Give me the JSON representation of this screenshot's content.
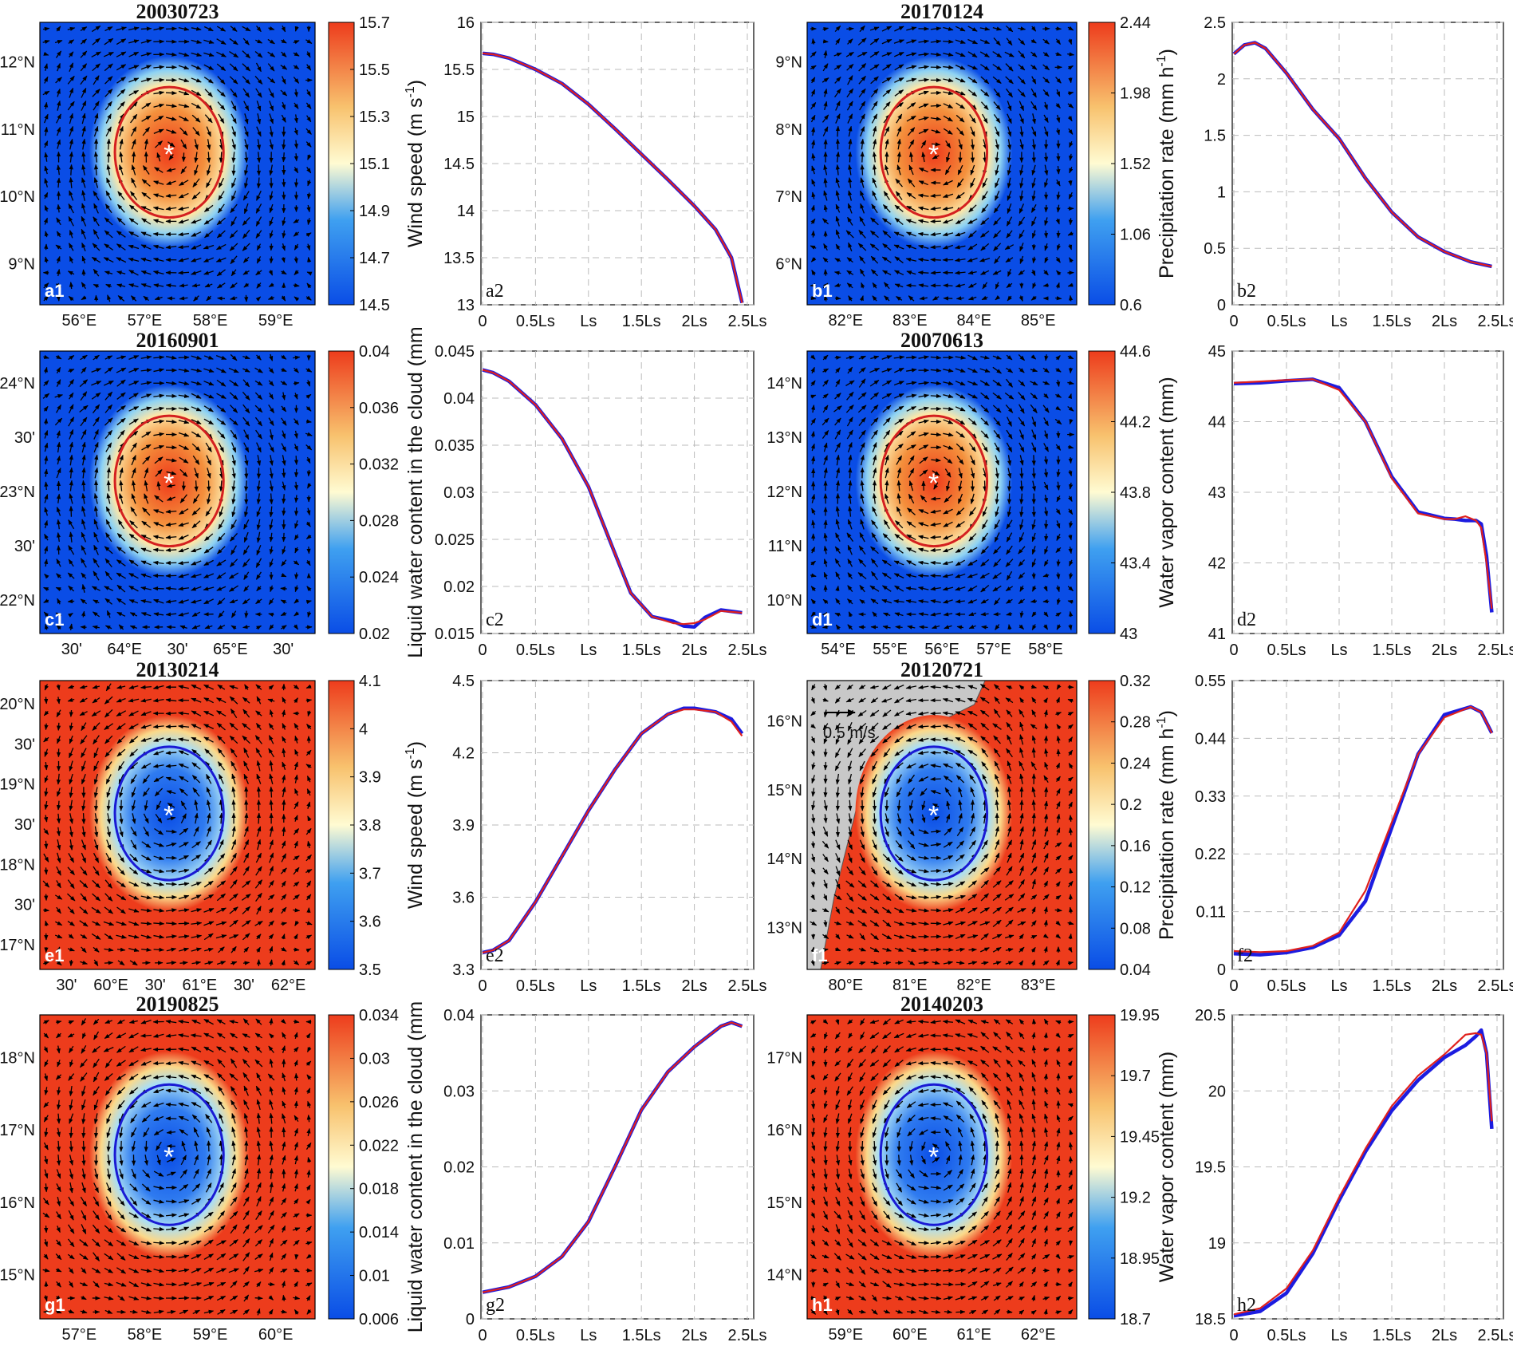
{
  "panels": [
    {
      "id": "a",
      "title": "20030723",
      "map_label": "a1",
      "plot_label": "a2",
      "center_marker": "*",
      "contour_color": "#d42020",
      "eddy": "warm",
      "lat_ticks": [
        "9°N",
        "10°N",
        "11°N",
        "12°N"
      ],
      "lon_ticks": [
        "56°E",
        "57°E",
        "58°E",
        "59°E"
      ],
      "colorbar": {
        "min": 14.5,
        "max": 15.7,
        "ticks": [
          "14.5",
          "14.7",
          "14.9",
          "15.1",
          "15.3",
          "15.5",
          "15.7"
        ]
      },
      "ylabel": "Wind speed (m s",
      "ylabel_sup": "-1",
      "ylabel_close": ")",
      "ylim": [
        13,
        16
      ],
      "yticks": [
        "13",
        "13.5",
        "14",
        "14.5",
        "15",
        "15.5",
        "16"
      ]
    },
    {
      "id": "b",
      "title": "20170124",
      "map_label": "b1",
      "plot_label": "b2",
      "center_marker": "*",
      "contour_color": "#d42020",
      "eddy": "warm",
      "lat_ticks": [
        "6°N",
        "7°N",
        "8°N",
        "9°N"
      ],
      "lon_ticks": [
        "82°E",
        "83°E",
        "84°E",
        "85°E"
      ],
      "colorbar": {
        "min": 0.6,
        "max": 2.44,
        "ticks": [
          "0.6",
          "1.06",
          "1.52",
          "1.98",
          "2.44"
        ]
      },
      "ylabel": "Precipitation rate (mm h",
      "ylabel_sup": "-1",
      "ylabel_close": ")",
      "ylim": [
        0,
        2.5
      ],
      "yticks": [
        "0",
        "0.5",
        "1",
        "1.5",
        "2",
        "2.5"
      ]
    },
    {
      "id": "c",
      "title": "20160901",
      "map_label": "c1",
      "plot_label": "c2",
      "center_marker": "*",
      "contour_color": "#d42020",
      "eddy": "warm",
      "lat_ticks": [
        "22°N",
        "30'",
        "23°N",
        "30'",
        "24°N"
      ],
      "lon_ticks": [
        "30'",
        "64°E",
        "30'",
        "65°E",
        "30'"
      ],
      "colorbar": {
        "min": 0.02,
        "max": 0.04,
        "ticks": [
          "0.02",
          "0.024",
          "0.028",
          "0.032",
          "0.036",
          "0.04"
        ]
      },
      "ylabel": "Liquid water content in the cloud (mm",
      "ylabel_sup": "",
      "ylabel_close": "",
      "ylim": [
        0.015,
        0.045
      ],
      "yticks": [
        "0.015",
        "0.02",
        "0.025",
        "0.03",
        "0.035",
        "0.04",
        "0.045"
      ]
    },
    {
      "id": "d",
      "title": "20070613",
      "map_label": "d1",
      "plot_label": "d2",
      "center_marker": "*",
      "contour_color": "#d42020",
      "eddy": "warm",
      "lat_ticks": [
        "10°N",
        "11°N",
        "12°N",
        "13°N",
        "14°N"
      ],
      "lon_ticks": [
        "54°E",
        "55°E",
        "56°E",
        "57°E",
        "58°E"
      ],
      "colorbar": {
        "min": 43,
        "max": 44.6,
        "ticks": [
          "43",
          "43.4",
          "43.8",
          "44.2",
          "44.6"
        ]
      },
      "ylabel": "Water vapor content (mm)",
      "ylabel_sup": "",
      "ylabel_close": "",
      "ylim": [
        41,
        45
      ],
      "yticks": [
        "41",
        "42",
        "43",
        "44",
        "45"
      ]
    },
    {
      "id": "e",
      "title": "20130214",
      "map_label": "e1",
      "plot_label": "e2",
      "center_marker": "*",
      "contour_color": "#1a1ad4",
      "eddy": "cold",
      "lat_ticks": [
        "17°N",
        "30'",
        "18°N",
        "30'",
        "19°N",
        "30'",
        "20°N"
      ],
      "lon_ticks": [
        "30'",
        "60°E",
        "30'",
        "61°E",
        "30'",
        "62°E"
      ],
      "colorbar": {
        "min": 3.5,
        "max": 4.1,
        "ticks": [
          "3.5",
          "3.6",
          "3.7",
          "3.8",
          "3.9",
          "4",
          "4.1"
        ]
      },
      "ylabel": "Wind speed (m s",
      "ylabel_sup": "-1",
      "ylabel_close": ")",
      "ylim": [
        3.3,
        4.5
      ],
      "yticks": [
        "3.3",
        "3.6",
        "3.9",
        "4.2",
        "4.5"
      ]
    },
    {
      "id": "f",
      "title": "20120721",
      "map_label": "f1",
      "plot_label": "f2",
      "center_marker": "*",
      "contour_color": "#1a1ad4",
      "eddy": "cold",
      "scale_arrow": "0.5 m/s",
      "lat_ticks": [
        "13°N",
        "14°N",
        "15°N",
        "16°N"
      ],
      "lon_ticks": [
        "80°E",
        "81°E",
        "82°E",
        "83°E"
      ],
      "colorbar": {
        "min": 0.04,
        "max": 0.32,
        "ticks": [
          "0.04",
          "0.08",
          "0.12",
          "0.16",
          "0.2",
          "0.24",
          "0.28",
          "0.32"
        ]
      },
      "ylabel": "Precipitation rate (mm h",
      "ylabel_sup": "-1",
      "ylabel_close": ")",
      "ylim": [
        0,
        0.55
      ],
      "yticks": [
        "0",
        "0.11",
        "0.22",
        "0.33",
        "0.44",
        "0.55"
      ]
    },
    {
      "id": "g",
      "title": "20190825",
      "map_label": "g1",
      "plot_label": "g2",
      "center_marker": "*",
      "contour_color": "#1a1ad4",
      "eddy": "cold",
      "lat_ticks": [
        "15°N",
        "16°N",
        "17°N",
        "18°N"
      ],
      "lon_ticks": [
        "57°E",
        "58°E",
        "59°E",
        "60°E"
      ],
      "colorbar": {
        "min": 0.006,
        "max": 0.034,
        "ticks": [
          "0.006",
          "0.01",
          "0.014",
          "0.018",
          "0.022",
          "0.026",
          "0.03",
          "0.034"
        ]
      },
      "ylabel": "Liquid water content in the cloud (mm",
      "ylabel_sup": "",
      "ylabel_close": "",
      "ylim": [
        0,
        0.04
      ],
      "yticks": [
        "0",
        "0.01",
        "0.02",
        "0.03",
        "0.04"
      ]
    },
    {
      "id": "h",
      "title": "20140203",
      "map_label": "h1",
      "plot_label": "h2",
      "center_marker": "*",
      "contour_color": "#1a1ad4",
      "eddy": "cold",
      "lat_ticks": [
        "14°N",
        "15°N",
        "16°N",
        "17°N"
      ],
      "lon_ticks": [
        "59°E",
        "60°E",
        "61°E",
        "62°E"
      ],
      "colorbar": {
        "min": 18.7,
        "max": 19.95,
        "ticks": [
          "18.7",
          "18.95",
          "19.2",
          "19.45",
          "19.7",
          "19.95"
        ]
      },
      "ylabel": "Water vapor content (mm)",
      "ylabel_sup": "",
      "ylabel_close": "",
      "ylim": [
        18.5,
        20.5
      ],
      "yticks": [
        "18.5",
        "19",
        "19.5",
        "20",
        "20.5"
      ]
    }
  ],
  "chart_data": [
    {
      "type": "line",
      "panel": "a2",
      "x": [
        0,
        0.1,
        0.25,
        0.5,
        0.75,
        1,
        1.25,
        1.5,
        1.75,
        2,
        2.2,
        2.35,
        2.45
      ],
      "series": [
        {
          "name": "red",
          "color": "#e0201c",
          "values": [
            15.67,
            15.66,
            15.62,
            15.5,
            15.35,
            15.13,
            14.87,
            14.6,
            14.33,
            14.05,
            13.8,
            13.5,
            13.02
          ]
        },
        {
          "name": "blue",
          "color": "#1c1ce0",
          "values": [
            15.67,
            15.66,
            15.62,
            15.5,
            15.35,
            15.13,
            14.87,
            14.6,
            14.33,
            14.05,
            13.8,
            13.5,
            13.02
          ]
        }
      ],
      "xlabel": "",
      "xticks": [
        "0",
        "0.5Ls",
        "Ls",
        "1.5Ls",
        "2Ls",
        "2.5Ls"
      ],
      "xlim": [
        0,
        2.5
      ],
      "ylim": [
        13,
        16
      ],
      "grid": true
    },
    {
      "type": "line",
      "panel": "b2",
      "x": [
        0,
        0.1,
        0.2,
        0.3,
        0.5,
        0.75,
        1,
        1.25,
        1.5,
        1.75,
        2,
        2.25,
        2.45
      ],
      "series": [
        {
          "name": "red",
          "color": "#e0201c",
          "values": [
            2.22,
            2.3,
            2.32,
            2.27,
            2.05,
            1.73,
            1.47,
            1.12,
            0.82,
            0.6,
            0.47,
            0.38,
            0.34
          ]
        },
        {
          "name": "blue",
          "color": "#1c1ce0",
          "values": [
            2.22,
            2.3,
            2.32,
            2.27,
            2.05,
            1.73,
            1.47,
            1.12,
            0.82,
            0.6,
            0.47,
            0.38,
            0.34
          ]
        }
      ],
      "xlabel": "",
      "xticks": [
        "0",
        "0.5Ls",
        "Ls",
        "1.5Ls",
        "2Ls",
        "2.5Ls"
      ],
      "xlim": [
        0,
        2.5
      ],
      "ylim": [
        0,
        2.5
      ],
      "grid": true
    },
    {
      "type": "line",
      "panel": "c2",
      "x": [
        0,
        0.1,
        0.25,
        0.5,
        0.75,
        1,
        1.25,
        1.4,
        1.6,
        1.8,
        1.9,
        2,
        2.1,
        2.25,
        2.45
      ],
      "series": [
        {
          "name": "red",
          "color": "#e0201c",
          "values": [
            0.043,
            0.0427,
            0.0418,
            0.0393,
            0.0357,
            0.0306,
            0.0235,
            0.0193,
            0.0168,
            0.0161,
            0.016,
            0.0161,
            0.0165,
            0.0174,
            0.0172
          ]
        },
        {
          "name": "blue",
          "color": "#1c1ce0",
          "values": [
            0.043,
            0.0427,
            0.0418,
            0.0393,
            0.0357,
            0.0306,
            0.0235,
            0.0193,
            0.0168,
            0.0163,
            0.0158,
            0.0157,
            0.0167,
            0.0175,
            0.0172
          ]
        }
      ],
      "xlabel": "",
      "xticks": [
        "0",
        "0.5Ls",
        "Ls",
        "1.5Ls",
        "2Ls",
        "2.5Ls"
      ],
      "xlim": [
        0,
        2.5
      ],
      "ylim": [
        0.015,
        0.045
      ],
      "grid": true
    },
    {
      "type": "line",
      "panel": "d2",
      "x": [
        0,
        0.25,
        0.5,
        0.75,
        1,
        1.25,
        1.5,
        1.75,
        2,
        2.1,
        2.2,
        2.3,
        2.35,
        2.4,
        2.45
      ],
      "series": [
        {
          "name": "red",
          "color": "#e0201c",
          "values": [
            44.55,
            44.57,
            44.59,
            44.6,
            44.45,
            44.0,
            43.2,
            42.7,
            42.62,
            42.62,
            42.66,
            42.6,
            42.5,
            42.0,
            41.35
          ]
        },
        {
          "name": "blue",
          "color": "#1c1ce0",
          "values": [
            44.54,
            44.55,
            44.58,
            44.6,
            44.48,
            44.0,
            43.22,
            42.72,
            42.63,
            42.62,
            42.6,
            42.6,
            42.55,
            42.1,
            41.3
          ]
        }
      ],
      "xlabel": "",
      "xticks": [
        "0",
        "0.5Ls",
        "Ls",
        "1.5Ls",
        "2Ls",
        "2.5Ls"
      ],
      "xlim": [
        0,
        2.5
      ],
      "ylim": [
        41,
        45
      ],
      "grid": true
    },
    {
      "type": "line",
      "panel": "e2",
      "x": [
        0,
        0.1,
        0.25,
        0.5,
        0.75,
        1,
        1.25,
        1.5,
        1.75,
        1.9,
        2,
        2.2,
        2.35,
        2.45
      ],
      "series": [
        {
          "name": "red",
          "color": "#e0201c",
          "values": [
            3.37,
            3.38,
            3.42,
            3.58,
            3.77,
            3.96,
            4.13,
            4.28,
            4.36,
            4.38,
            4.38,
            4.37,
            4.33,
            4.27
          ]
        },
        {
          "name": "blue",
          "color": "#1c1ce0",
          "values": [
            3.37,
            3.38,
            3.42,
            3.58,
            3.77,
            3.96,
            4.13,
            4.28,
            4.36,
            4.385,
            4.385,
            4.37,
            4.34,
            4.28
          ]
        }
      ],
      "xlabel": "",
      "xticks": [
        "0",
        "0.5Ls",
        "Ls",
        "1.5Ls",
        "2Ls",
        "2.5Ls"
      ],
      "xlim": [
        0,
        2.5
      ],
      "ylim": [
        3.3,
        4.5
      ],
      "grid": true
    },
    {
      "type": "line",
      "panel": "f2",
      "x": [
        0,
        0.25,
        0.5,
        0.75,
        1,
        1.25,
        1.5,
        1.75,
        2,
        2.25,
        2.35,
        2.45
      ],
      "series": [
        {
          "name": "red",
          "color": "#e0201c",
          "values": [
            0.035,
            0.033,
            0.035,
            0.045,
            0.07,
            0.15,
            0.28,
            0.41,
            0.48,
            0.5,
            0.49,
            0.45
          ]
        },
        {
          "name": "blue",
          "color": "#1c1ce0",
          "values": [
            0.03,
            0.028,
            0.032,
            0.042,
            0.065,
            0.13,
            0.27,
            0.41,
            0.485,
            0.5,
            0.49,
            0.45
          ]
        }
      ],
      "xlabel": "",
      "xticks": [
        "0",
        "0.5Ls",
        "Ls",
        "1.5Ls",
        "2Ls",
        "2.5Ls"
      ],
      "xlim": [
        0,
        2.5
      ],
      "ylim": [
        0,
        0.55
      ],
      "grid": true
    },
    {
      "type": "line",
      "panel": "g2",
      "x": [
        0,
        0.25,
        0.5,
        0.75,
        1,
        1.25,
        1.5,
        1.75,
        2,
        2.25,
        2.35,
        2.45
      ],
      "series": [
        {
          "name": "red",
          "color": "#e0201c",
          "values": [
            0.0035,
            0.0042,
            0.0056,
            0.0082,
            0.0128,
            0.02,
            0.0275,
            0.0325,
            0.0358,
            0.0385,
            0.039,
            0.0385
          ]
        },
        {
          "name": "blue",
          "color": "#1c1ce0",
          "values": [
            0.0035,
            0.0042,
            0.0056,
            0.0082,
            0.0128,
            0.02,
            0.0275,
            0.0325,
            0.0358,
            0.0385,
            0.039,
            0.0385
          ]
        }
      ],
      "xlabel": "",
      "xticks": [
        "0",
        "0.5Ls",
        "Ls",
        "1.5Ls",
        "2Ls",
        "2.5Ls"
      ],
      "xlim": [
        0,
        2.5
      ],
      "ylim": [
        0,
        0.04
      ],
      "grid": true
    },
    {
      "type": "line",
      "panel": "h2",
      "x": [
        0,
        0.25,
        0.5,
        0.75,
        1,
        1.25,
        1.5,
        1.75,
        2,
        2.2,
        2.3,
        2.35,
        2.4,
        2.45
      ],
      "series": [
        {
          "name": "red",
          "color": "#e0201c",
          "values": [
            18.53,
            18.57,
            18.7,
            18.95,
            19.3,
            19.62,
            19.9,
            20.1,
            20.24,
            20.37,
            20.38,
            20.37,
            20.25,
            19.8
          ]
        },
        {
          "name": "blue",
          "color": "#1c1ce0",
          "values": [
            18.52,
            18.55,
            18.67,
            18.93,
            19.28,
            19.6,
            19.87,
            20.07,
            20.22,
            20.3,
            20.36,
            20.4,
            20.25,
            19.75
          ]
        }
      ],
      "xlabel": "",
      "xticks": [
        "0",
        "0.5Ls",
        "Ls",
        "1.5Ls",
        "2Ls",
        "2.5Ls"
      ],
      "xlim": [
        0,
        2.5
      ],
      "ylim": [
        18.5,
        20.5
      ],
      "grid": true
    }
  ]
}
